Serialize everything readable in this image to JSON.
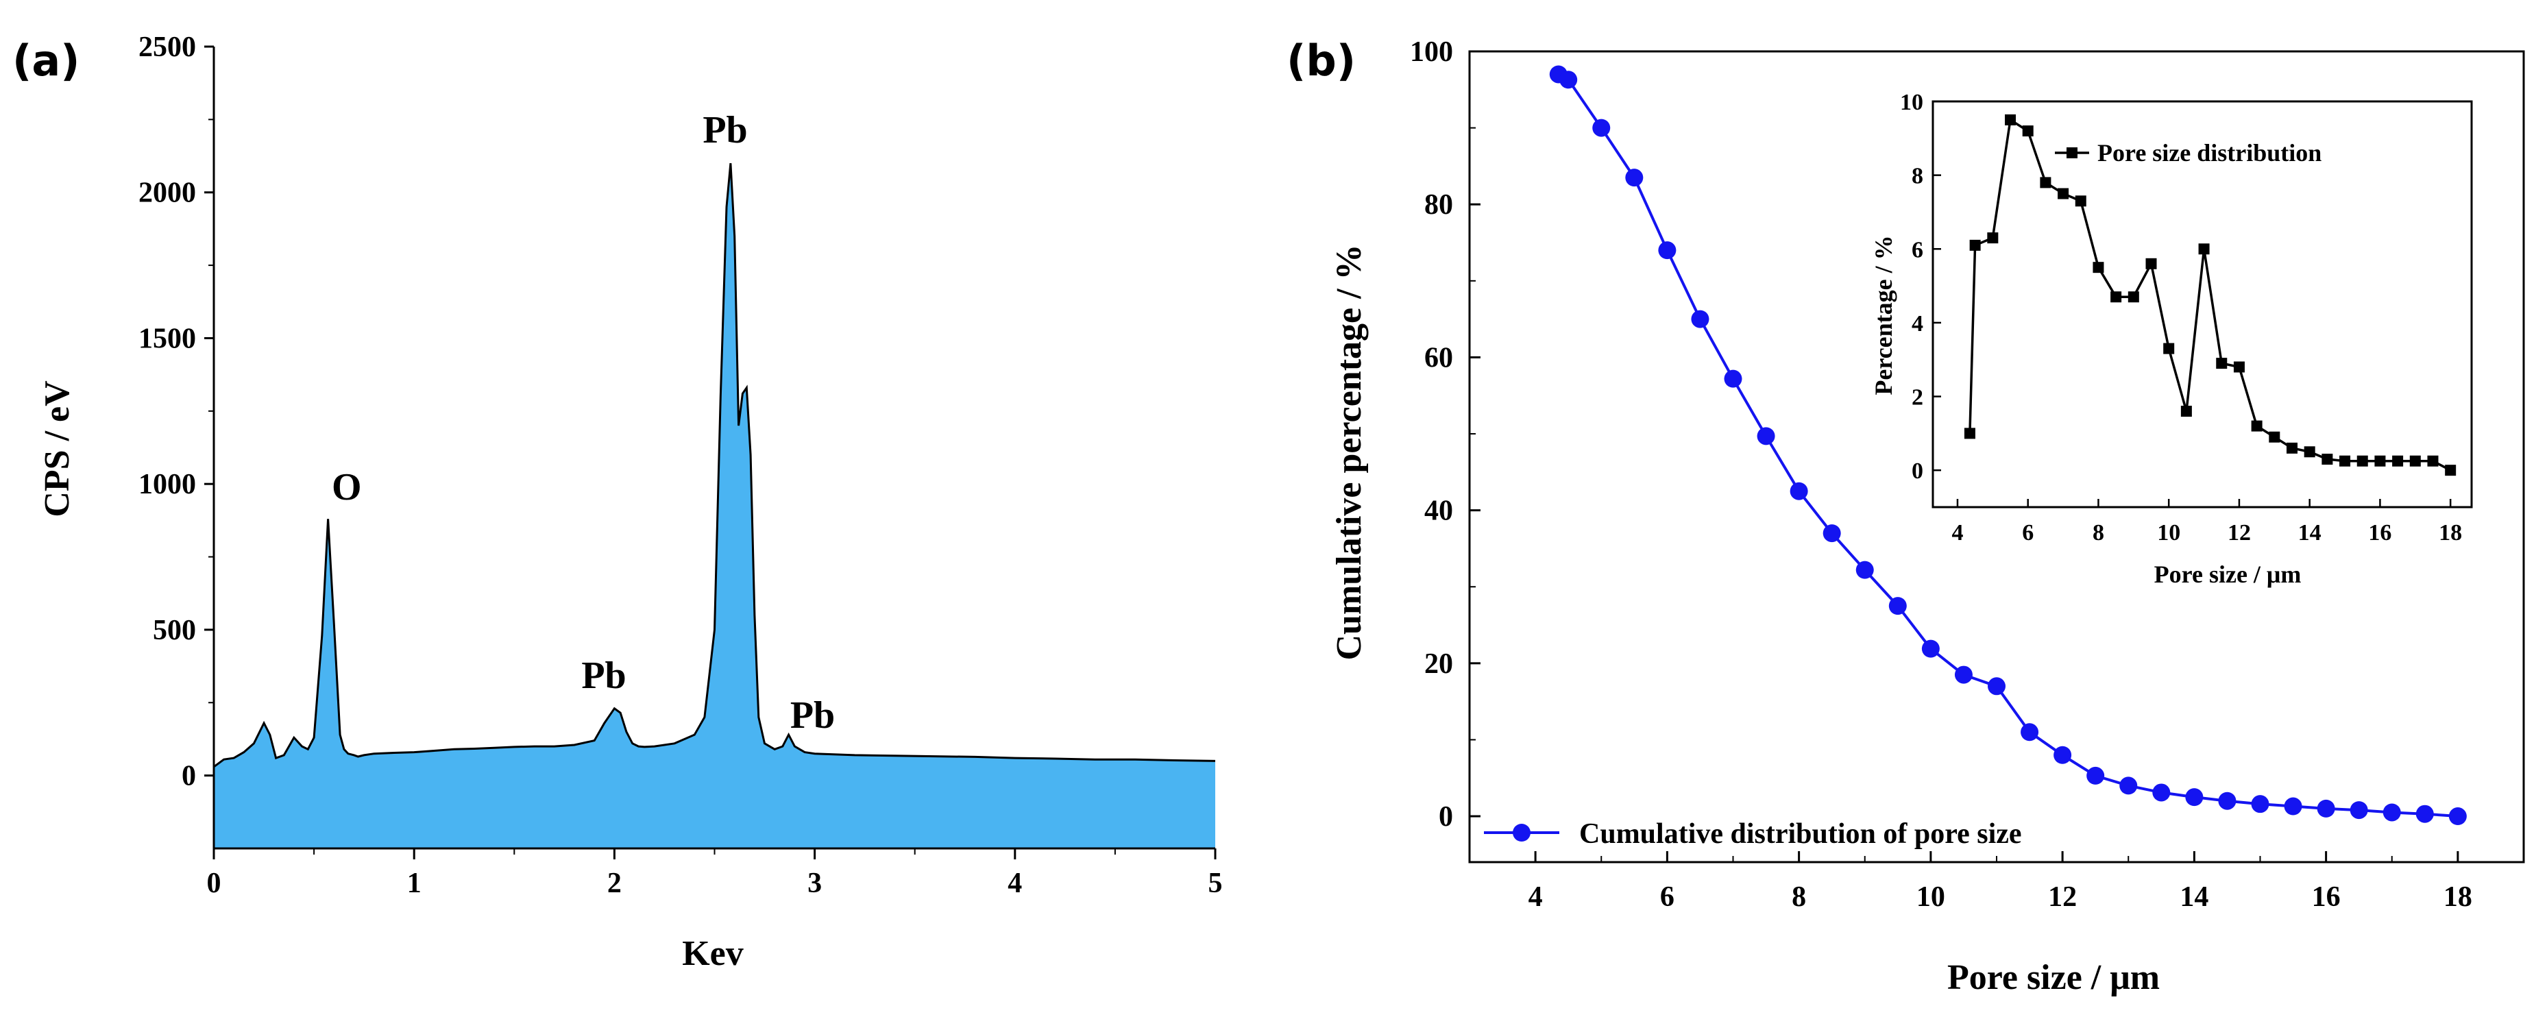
{
  "chart_data": [
    {
      "panel": "(a)",
      "type": "area",
      "title": "",
      "xlabel": "Kev",
      "ylabel": "CPS / eV",
      "xlim": [
        0,
        5
      ],
      "ylim": [
        -250,
        2500
      ],
      "xticks": [
        0,
        1,
        2,
        3,
        4,
        5
      ],
      "yticks": [
        0,
        500,
        1000,
        1500,
        2000,
        2500
      ],
      "fill_color": "#4ab4f2",
      "line_color": "#000000",
      "spectrum": {
        "x": [
          0,
          0.05,
          0.1,
          0.15,
          0.2,
          0.25,
          0.28,
          0.31,
          0.35,
          0.4,
          0.44,
          0.47,
          0.5,
          0.54,
          0.57,
          0.6,
          0.63,
          0.65,
          0.67,
          0.7,
          0.72,
          0.75,
          0.8,
          0.9,
          1.0,
          1.1,
          1.2,
          1.3,
          1.4,
          1.5,
          1.6,
          1.7,
          1.8,
          1.9,
          1.95,
          2.0,
          2.03,
          2.06,
          2.09,
          2.12,
          2.15,
          2.2,
          2.3,
          2.4,
          2.45,
          2.5,
          2.53,
          2.56,
          2.58,
          2.6,
          2.62,
          2.64,
          2.66,
          2.68,
          2.7,
          2.72,
          2.75,
          2.8,
          2.84,
          2.87,
          2.9,
          2.95,
          3.0,
          3.2,
          3.4,
          3.6,
          3.8,
          4.0,
          4.2,
          4.4,
          4.6,
          4.8,
          5.0
        ],
        "y": [
          30,
          55,
          60,
          80,
          110,
          180,
          140,
          60,
          70,
          130,
          100,
          90,
          130,
          480,
          880,
          520,
          140,
          90,
          75,
          70,
          65,
          70,
          75,
          78,
          80,
          85,
          90,
          92,
          95,
          98,
          100,
          100,
          105,
          120,
          180,
          230,
          215,
          150,
          110,
          100,
          98,
          100,
          110,
          140,
          200,
          500,
          1300,
          1950,
          2100,
          1850,
          1200,
          1310,
          1330,
          1100,
          550,
          200,
          110,
          90,
          100,
          140,
          100,
          80,
          75,
          70,
          68,
          66,
          64,
          60,
          58,
          55,
          55,
          52,
          50
        ]
      },
      "annotations": [
        {
          "text": "O",
          "x": 0.67,
          "y": 880
        },
        {
          "text": "Pb",
          "x": 2.56,
          "y": 2100
        },
        {
          "text": "Pb",
          "x": 2.05,
          "y": 230
        },
        {
          "text": "Pb",
          "x": 2.88,
          "y": 140
        }
      ]
    },
    {
      "panel": "(b)",
      "type": "line",
      "title": "",
      "xlabel": "Pore size / μm",
      "ylabel": "Cumulative percentage / %",
      "xlim": [
        3,
        19
      ],
      "ylim": [
        -6,
        100
      ],
      "xticks": [
        4,
        6,
        8,
        10,
        12,
        14,
        16,
        18
      ],
      "yticks": [
        0,
        20,
        40,
        60,
        80,
        100
      ],
      "legend": "bottom-left",
      "series": [
        {
          "name": "Cumulative distribution of pore size",
          "color": "#1414f0",
          "marker": "circle",
          "x": [
            4.35,
            4.5,
            5,
            5.5,
            6,
            6.5,
            7,
            7.5,
            8,
            8.5,
            9,
            9.5,
            10,
            10.5,
            11,
            11.5,
            12,
            12.5,
            13,
            13.5,
            14,
            14.5,
            15,
            15.5,
            16,
            16.5,
            17,
            17.5,
            18
          ],
          "y": [
            97,
            96.3,
            90,
            83.5,
            74,
            65,
            57.2,
            49.7,
            42.5,
            37,
            32.2,
            27.5,
            21.9,
            18.5,
            17,
            11,
            8,
            5.3,
            4,
            3.1,
            2.5,
            2,
            1.6,
            1.3,
            1,
            0.8,
            0.5,
            0.3,
            0
          ]
        }
      ],
      "inset": {
        "type": "line",
        "xlabel": "Pore size / μm",
        "ylabel": "Percentage / %",
        "xlim": [
          3.3,
          18.6
        ],
        "ylim": [
          -1,
          10
        ],
        "xticks": [
          4,
          6,
          8,
          10,
          12,
          14,
          16,
          18
        ],
        "yticks": [
          0,
          2,
          4,
          6,
          8,
          10
        ],
        "legend": "top-right",
        "series": [
          {
            "name": "Pore size distribution",
            "color": "#000000",
            "marker": "square",
            "x": [
              4.35,
              4.5,
              5,
              5.5,
              6,
              6.5,
              7,
              7.5,
              8,
              8.5,
              9,
              9.5,
              10,
              10.5,
              11,
              11.5,
              12,
              12.5,
              13,
              13.5,
              14,
              14.5,
              15,
              15.5,
              16,
              16.5,
              17,
              17.5,
              18
            ],
            "y": [
              1,
              6.1,
              6.3,
              9.5,
              9.2,
              7.8,
              7.5,
              7.3,
              5.5,
              4.7,
              4.7,
              5.6,
              3.3,
              1.6,
              6,
              2.9,
              2.8,
              1.2,
              0.9,
              0.6,
              0.5,
              0.3,
              0.25,
              0.25,
              0.25,
              0.25,
              0.25,
              0.25,
              0
            ]
          }
        ]
      }
    }
  ]
}
